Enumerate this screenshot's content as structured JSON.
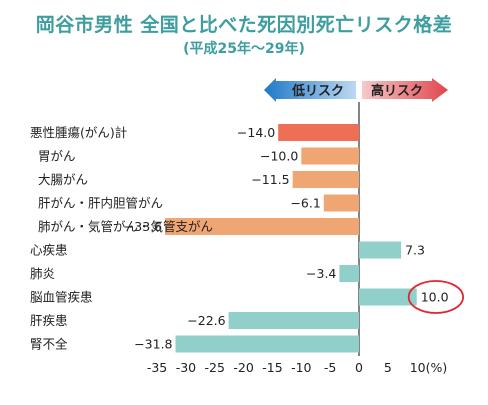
{
  "title": "岡谷市男性 全国と比べた死因別死亡リスク格差",
  "subtitle": "(平成25年～29年)",
  "legend": {
    "low_label": "低リスク",
    "high_label": "高リスク",
    "low_color": "#1f78c8",
    "high_color": "#e0454d"
  },
  "colors": {
    "title": "#3e9e9f",
    "cancer_total": "#ee6f55",
    "cancer_sub": "#f0a673",
    "other": "#91cfca",
    "highlight_circle": "#e0262f"
  },
  "chart_data": {
    "type": "bar",
    "orientation": "horizontal",
    "title": "岡谷市男性 全国と比べた死因別死亡リスク格差",
    "subtitle": "(平成25年～29年)",
    "categories": [
      "悪性腫瘍(がん)計",
      "胃がん",
      "大腸がん",
      "肝がん・肝内胆管がん",
      "肺がん・気管がん・気管支がん",
      "心疾患",
      "肺炎",
      "脳血管疾患",
      "肝疾患",
      "腎不全"
    ],
    "values": [
      -14.0,
      -10.0,
      -11.5,
      -6.1,
      -33.6,
      7.3,
      -3.4,
      10.0,
      -22.6,
      -31.8
    ],
    "value_labels": [
      "−14.0",
      "−10.0",
      "−11.5",
      "−6.1",
      "−33.6",
      "7.3",
      "−3.4",
      "10.0",
      "−22.6",
      "−31.8"
    ],
    "groups": [
      "cancer_total",
      "cancer_sub",
      "cancer_sub",
      "cancer_sub",
      "cancer_sub",
      "other",
      "other",
      "other",
      "other",
      "other"
    ],
    "highlighted": "脳血管疾患",
    "xlim": [
      -35,
      10
    ],
    "xticks": [
      "-35",
      "-30",
      "-25",
      "-20",
      "-15",
      "-10",
      "-5",
      "0",
      "5",
      "10(%)"
    ],
    "xlabel": "",
    "ylabel": ""
  }
}
